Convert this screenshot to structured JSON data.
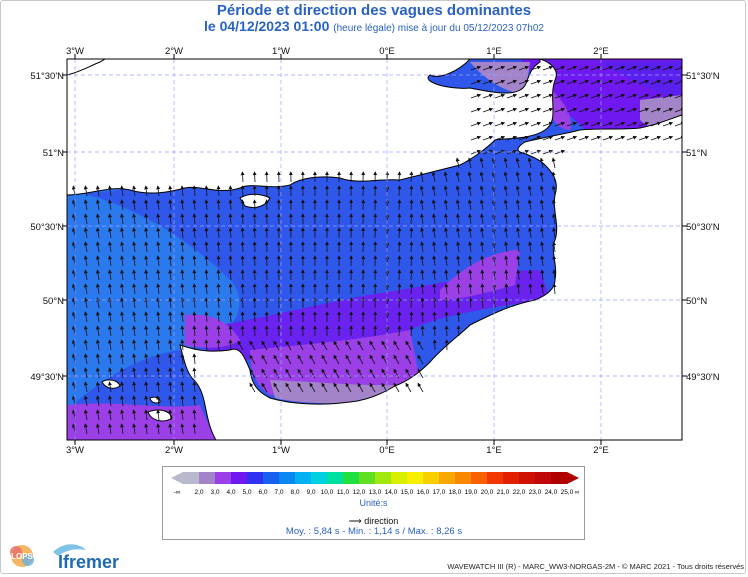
{
  "header": {
    "title": "Période et direction des vagues dominantes",
    "date_line": "le 04/12/2023 01:00",
    "date_note": "(heure légale) mise à jour du 05/12/2023 07h02"
  },
  "map": {
    "lon_ticks": [
      "3°W",
      "2°W",
      "1°W",
      "0°E",
      "1°E",
      "2°E"
    ],
    "lat_ticks": [
      "51°30'N",
      "51°N",
      "50°30'N",
      "50°N",
      "49°30'N"
    ],
    "region": "English Channel",
    "land_color": "#ffffff",
    "grid_color": "#9aa0ff"
  },
  "legend": {
    "min_label": "-∞",
    "max_label": "∞",
    "values": [
      "2,0",
      "3,0",
      "4,0",
      "5,0",
      "6,0",
      "7,0",
      "8,0",
      "9,0",
      "10,0",
      "11,0",
      "12,0",
      "13,0",
      "14,0",
      "15,0",
      "16,0",
      "17,0",
      "18,0",
      "19,0",
      "20,0",
      "21,0",
      "22,0",
      "23,0",
      "24,0",
      "25,0"
    ],
    "colors": [
      "#b9b9ce",
      "#a484c8",
      "#9b40e6",
      "#7018f0",
      "#3030f0",
      "#1860f0",
      "#0888f0",
      "#00b0f0",
      "#00d0e0",
      "#00e0a0",
      "#20e040",
      "#60e020",
      "#a0e810",
      "#d8f000",
      "#f8f000",
      "#f8d000",
      "#f8a800",
      "#f88800",
      "#f86000",
      "#f03800",
      "#e02000",
      "#d01000",
      "#c00808",
      "#b00000"
    ],
    "unit": "Unité:s",
    "direction_label": "direction"
  },
  "stats": {
    "text": "Moy. : 5,84 s   -   Min. : 1,14 s / Max. : 8,26 s"
  },
  "footer": {
    "credit": "WAVEWATCH III (R) - MARC_WW3-NORGAS-2M - © MARC 2021 - Tous droits réservés",
    "logo_lops": "LOPS",
    "logo_ifremer": "Ifremer"
  }
}
